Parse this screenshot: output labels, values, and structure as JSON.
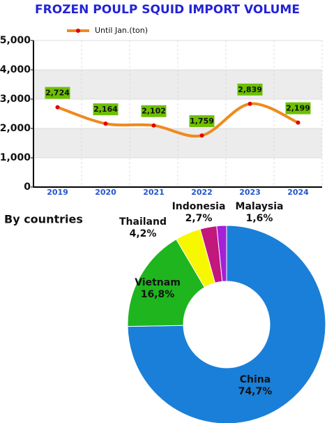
{
  "chart_data": [
    {
      "type": "line",
      "title": "FROZEN POULP SQUID IMPORT VOLUME",
      "categories": [
        "2019",
        "2020",
        "2021",
        "2022",
        "2023",
        "2024"
      ],
      "series": [
        {
          "name": "Until Jan.(ton)",
          "color": "#f08a1c",
          "values": [
            2724,
            2164,
            2102,
            1759,
            2839,
            2199
          ],
          "value_labels": [
            "2,724",
            "2,164",
            "2,102",
            "1,759",
            "2,839",
            "2,199"
          ]
        }
      ],
      "ylim": [
        0,
        5000
      ],
      "yticks": [
        0,
        {
          "value": 1000,
          "label": "1,000"
        },
        {
          "value": 2000,
          "label": "2,000"
        },
        {
          "value": 3000,
          "label": "3,000"
        },
        {
          "value": 4000,
          "label": "4,000"
        },
        {
          "value": 5000,
          "label": "5,000"
        }
      ],
      "grid": true
    },
    {
      "type": "donut",
      "title": "By countries",
      "categories": [
        "China",
        "Vietnam",
        "Thailand",
        "Indonesia",
        "Malaysia"
      ],
      "values": [
        74.7,
        16.8,
        4.2,
        2.7,
        1.6
      ],
      "value_labels": [
        "74,7%",
        "16,8%",
        "4,2%",
        "2,7%",
        "1,6%"
      ],
      "colors": [
        "#1a7fd8",
        "#1fb51f",
        "#f7f700",
        "#c2177c",
        "#a321d6"
      ]
    }
  ]
}
